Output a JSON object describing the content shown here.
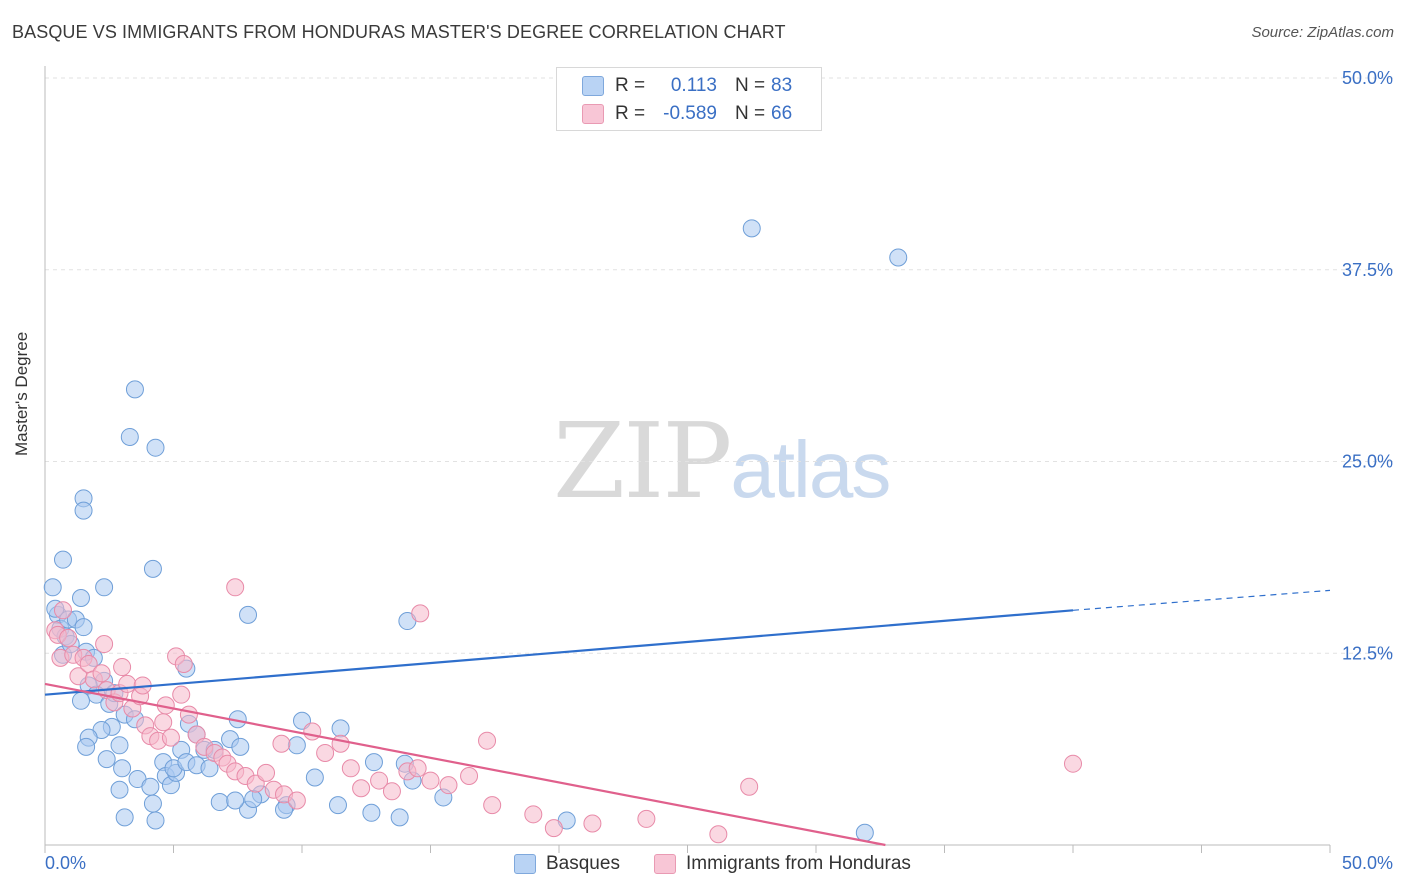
{
  "title": "BASQUE VS IMMIGRANTS FROM HONDURAS MASTER'S DEGREE CORRELATION CHART",
  "source": "Source: ZipAtlas.com",
  "watermark": {
    "part1": "ZIP",
    "part2": "atlas"
  },
  "stats": {
    "row1": {
      "r_label": "R =",
      "r_value": "0.113",
      "n_label": "N =",
      "n_value": "83"
    },
    "row2": {
      "r_label": "R =",
      "r_value": "-0.589",
      "n_label": "N =",
      "n_value": "66"
    }
  },
  "legend": {
    "series1": "Basques",
    "series2": "Immigrants from Honduras"
  },
  "colors": {
    "blue_fill": "#a9c8f0",
    "blue_stroke": "#6f9fd8",
    "blue_line": "#2f6fcc",
    "pink_fill": "#f6b8cb",
    "pink_stroke": "#e88aa8",
    "pink_line": "#e0608c",
    "axis_text": "#3a6fc4"
  },
  "chart_data": {
    "type": "scatter",
    "title": "BASQUE VS IMMIGRANTS FROM HONDURAS MASTER'S DEGREE CORRELATION CHART",
    "xlabel": "",
    "ylabel": "Master's Degree",
    "xlim": [
      0,
      50
    ],
    "ylim": [
      0,
      50
    ],
    "x_tick_labels": [
      "0.0%",
      "50.0%"
    ],
    "y_tick_labels": [
      "12.5%",
      "25.0%",
      "37.5%",
      "50.0%"
    ],
    "y_ticks": [
      12.5,
      25.0,
      37.5,
      50.0
    ],
    "x_tick_marks": [
      0,
      5,
      10,
      15,
      20,
      25,
      30,
      35,
      40,
      45,
      50
    ],
    "grid": true,
    "series": [
      {
        "name": "Basques",
        "r": 0.113,
        "n": 83,
        "trend": {
          "x0": 0,
          "y0": 9.8,
          "x1": 40,
          "y1": 15.3,
          "dash_x1": 50,
          "dash_y1": 16.6
        },
        "points": [
          [
            0.3,
            16.8
          ],
          [
            0.5,
            15.0
          ],
          [
            0.4,
            15.4
          ],
          [
            0.6,
            14.1
          ],
          [
            0.8,
            13.6
          ],
          [
            0.7,
            12.4
          ],
          [
            1.0,
            13.1
          ],
          [
            0.9,
            14.7
          ],
          [
            0.7,
            18.6
          ],
          [
            1.2,
            14.7
          ],
          [
            1.4,
            16.1
          ],
          [
            1.5,
            14.2
          ],
          [
            1.6,
            12.6
          ],
          [
            1.9,
            12.2
          ],
          [
            2.3,
            10.7
          ],
          [
            1.7,
            10.4
          ],
          [
            2.0,
            9.8
          ],
          [
            1.4,
            9.4
          ],
          [
            2.5,
            9.2
          ],
          [
            2.7,
            9.9
          ],
          [
            2.6,
            7.7
          ],
          [
            2.2,
            7.5
          ],
          [
            1.7,
            7.0
          ],
          [
            1.6,
            6.4
          ],
          [
            2.4,
            5.6
          ],
          [
            3.1,
            8.5
          ],
          [
            2.9,
            6.5
          ],
          [
            3.0,
            5.0
          ],
          [
            2.9,
            3.6
          ],
          [
            3.1,
            1.8
          ],
          [
            3.5,
            8.2
          ],
          [
            3.6,
            4.3
          ],
          [
            4.1,
            3.8
          ],
          [
            4.2,
            2.7
          ],
          [
            4.6,
            5.4
          ],
          [
            4.7,
            4.5
          ],
          [
            4.9,
            3.9
          ],
          [
            5.1,
            4.7
          ],
          [
            4.3,
            1.6
          ],
          [
            5.0,
            5.0
          ],
          [
            5.3,
            6.2
          ],
          [
            5.5,
            5.4
          ],
          [
            5.6,
            7.9
          ],
          [
            5.9,
            5.2
          ],
          [
            6.2,
            6.2
          ],
          [
            6.6,
            6.2
          ],
          [
            6.4,
            5.0
          ],
          [
            7.2,
            6.9
          ],
          [
            7.6,
            6.4
          ],
          [
            7.9,
            2.3
          ],
          [
            8.4,
            3.3
          ],
          [
            8.1,
            3.0
          ],
          [
            9.4,
            2.6
          ],
          [
            9.3,
            2.3
          ],
          [
            10.0,
            8.1
          ],
          [
            11.5,
            7.6
          ],
          [
            12.8,
            5.4
          ],
          [
            12.7,
            2.1
          ],
          [
            14.0,
            5.3
          ],
          [
            15.5,
            3.1
          ],
          [
            5.5,
            11.5
          ],
          [
            7.9,
            15.0
          ],
          [
            4.2,
            18.0
          ],
          [
            3.5,
            29.7
          ],
          [
            4.3,
            25.9
          ],
          [
            3.3,
            26.6
          ],
          [
            1.5,
            22.6
          ],
          [
            1.5,
            21.8
          ],
          [
            2.3,
            16.8
          ],
          [
            5.9,
            7.2
          ],
          [
            6.8,
            2.8
          ],
          [
            7.4,
            2.9
          ],
          [
            9.8,
            6.5
          ],
          [
            7.5,
            8.2
          ],
          [
            10.5,
            4.4
          ],
          [
            11.4,
            2.6
          ],
          [
            13.8,
            1.8
          ],
          [
            14.3,
            4.2
          ],
          [
            20.3,
            1.6
          ],
          [
            31.9,
            0.8
          ],
          [
            14.1,
            14.6
          ],
          [
            27.5,
            40.2
          ],
          [
            33.2,
            38.3
          ]
        ]
      },
      {
        "name": "Immigrants from Honduras",
        "r": -0.589,
        "n": 66,
        "trend": {
          "x0": 0,
          "y0": 10.5,
          "x1": 32.7,
          "y1": 0.0
        },
        "points": [
          [
            0.4,
            14.0
          ],
          [
            0.5,
            13.7
          ],
          [
            0.6,
            12.2
          ],
          [
            0.7,
            15.3
          ],
          [
            0.9,
            13.5
          ],
          [
            1.1,
            12.4
          ],
          [
            1.3,
            11.0
          ],
          [
            1.5,
            12.2
          ],
          [
            1.7,
            11.8
          ],
          [
            1.9,
            10.8
          ],
          [
            2.2,
            11.2
          ],
          [
            2.4,
            10.1
          ],
          [
            2.3,
            13.1
          ],
          [
            2.7,
            9.3
          ],
          [
            2.9,
            9.9
          ],
          [
            3.2,
            10.5
          ],
          [
            3.4,
            8.9
          ],
          [
            3.7,
            9.7
          ],
          [
            3.9,
            7.8
          ],
          [
            4.1,
            7.1
          ],
          [
            4.4,
            6.8
          ],
          [
            4.6,
            8.0
          ],
          [
            4.9,
            7.0
          ],
          [
            5.3,
            9.8
          ],
          [
            5.6,
            8.5
          ],
          [
            5.9,
            7.2
          ],
          [
            6.2,
            6.4
          ],
          [
            6.6,
            6.0
          ],
          [
            6.9,
            5.7
          ],
          [
            7.1,
            5.3
          ],
          [
            7.4,
            4.8
          ],
          [
            7.8,
            4.5
          ],
          [
            8.2,
            4.0
          ],
          [
            8.6,
            4.7
          ],
          [
            8.9,
            3.6
          ],
          [
            9.3,
            3.3
          ],
          [
            9.8,
            2.9
          ],
          [
            10.4,
            7.4
          ],
          [
            10.9,
            6.0
          ],
          [
            11.5,
            6.6
          ],
          [
            11.9,
            5.0
          ],
          [
            12.3,
            3.7
          ],
          [
            13.0,
            4.2
          ],
          [
            13.5,
            3.5
          ],
          [
            14.1,
            4.8
          ],
          [
            14.5,
            5.0
          ],
          [
            15.0,
            4.2
          ],
          [
            15.7,
            3.9
          ],
          [
            16.5,
            4.5
          ],
          [
            17.4,
            2.6
          ],
          [
            17.2,
            6.8
          ],
          [
            19.0,
            2.0
          ],
          [
            19.8,
            1.1
          ],
          [
            21.3,
            1.4
          ],
          [
            23.4,
            1.7
          ],
          [
            26.2,
            0.7
          ],
          [
            27.4,
            3.8
          ],
          [
            3.0,
            11.6
          ],
          [
            3.8,
            10.4
          ],
          [
            4.7,
            9.1
          ],
          [
            5.1,
            12.3
          ],
          [
            5.4,
            11.8
          ],
          [
            7.4,
            16.8
          ],
          [
            9.2,
            6.6
          ],
          [
            14.6,
            15.1
          ],
          [
            40.0,
            5.3
          ]
        ]
      }
    ]
  }
}
